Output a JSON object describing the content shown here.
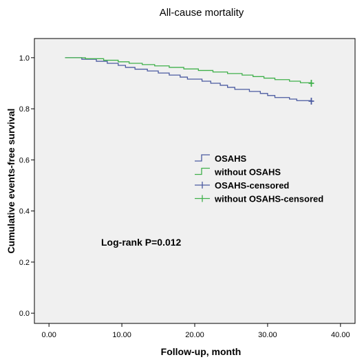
{
  "chart_data": {
    "type": "line",
    "title": "All-cause mortality",
    "xlabel": "Follow-up, month",
    "ylabel": "Cumulative events-free survival",
    "xlim": [
      -2,
      42
    ],
    "ylim": [
      -0.04,
      1.075
    ],
    "x_ticks": [
      "0.00",
      "10.00",
      "20.00",
      "30.00",
      "40.00"
    ],
    "x_tick_values": [
      0,
      10,
      20,
      30,
      40
    ],
    "y_ticks": [
      "0.0",
      "0.2",
      "0.4",
      "0.6",
      "0.8",
      "1.0"
    ],
    "y_tick_values": [
      0,
      0.2,
      0.4,
      0.6,
      0.8,
      1.0
    ],
    "grid": false,
    "legend_position": "center-right",
    "legend": [
      {
        "label": "OSAHS",
        "kind": "step",
        "color": "#4a5aa0"
      },
      {
        "label": "without OSAHS",
        "kind": "step",
        "color": "#3fb04a"
      },
      {
        "label": "OSAHS-censored",
        "kind": "cross",
        "color": "#4a5aa0"
      },
      {
        "label": "without OSAHS-censored",
        "kind": "cross",
        "color": "#3fb04a"
      }
    ],
    "annotation": "Log-rank P=0.012",
    "series": [
      {
        "group": "OSAHS",
        "color": "#4a5aa0",
        "steps": [
          [
            2.2,
            1.0
          ],
          [
            4.5,
            0.994
          ],
          [
            6.5,
            0.986
          ],
          [
            8,
            0.978
          ],
          [
            9.5,
            0.97
          ],
          [
            10.5,
            0.962
          ],
          [
            11.8,
            0.955
          ],
          [
            13.5,
            0.948
          ],
          [
            15,
            0.94
          ],
          [
            16.5,
            0.932
          ],
          [
            18,
            0.924
          ],
          [
            19,
            0.916
          ],
          [
            21,
            0.908
          ],
          [
            22.2,
            0.9
          ],
          [
            23.5,
            0.892
          ],
          [
            24.5,
            0.884
          ],
          [
            25.5,
            0.876
          ],
          [
            27.5,
            0.868
          ],
          [
            29,
            0.86
          ],
          [
            30,
            0.852
          ],
          [
            31,
            0.844
          ],
          [
            33,
            0.838
          ],
          [
            34,
            0.832
          ],
          [
            36,
            0.83
          ]
        ],
        "censor": [
          [
            36,
            0.83
          ]
        ]
      },
      {
        "group": "without OSAHS",
        "color": "#3fb04a",
        "steps": [
          [
            2.2,
            1.0
          ],
          [
            5,
            0.996
          ],
          [
            7.5,
            0.99
          ],
          [
            9.5,
            0.984
          ],
          [
            11,
            0.978
          ],
          [
            12.8,
            0.973
          ],
          [
            14.5,
            0.968
          ],
          [
            16.5,
            0.962
          ],
          [
            18.5,
            0.956
          ],
          [
            20.5,
            0.95
          ],
          [
            22.5,
            0.944
          ],
          [
            24.5,
            0.938
          ],
          [
            26.5,
            0.932
          ],
          [
            28,
            0.926
          ],
          [
            29.5,
            0.92
          ],
          [
            31,
            0.914
          ],
          [
            33,
            0.908
          ],
          [
            34.5,
            0.902
          ],
          [
            36,
            0.9
          ]
        ],
        "censor": [
          [
            36,
            0.9
          ]
        ]
      }
    ]
  }
}
